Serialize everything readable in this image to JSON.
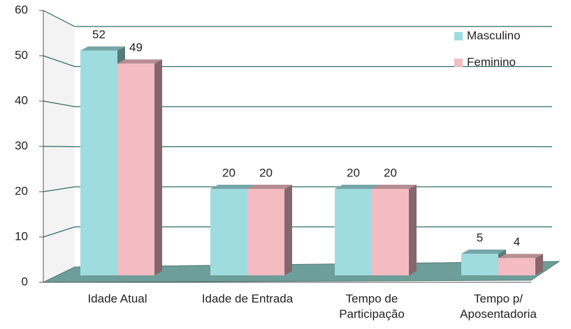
{
  "chart_data": {
    "type": "bar3d",
    "categories": [
      "Idade Atual",
      "Idade de Entrada",
      "Tempo de Participação",
      "Tempo p/ Aposentadoria"
    ],
    "series": [
      {
        "name": "Masculino",
        "color": "#9fdcdf",
        "values": [
          52,
          20,
          20,
          5
        ]
      },
      {
        "name": "Feminino",
        "color": "#f2bcc2",
        "values": [
          49,
          20,
          20,
          4
        ]
      }
    ],
    "ylim": [
      0,
      60
    ],
    "yticks": [
      0,
      10,
      20,
      30,
      40,
      50,
      60
    ],
    "grid": true,
    "legend": "top-right"
  }
}
